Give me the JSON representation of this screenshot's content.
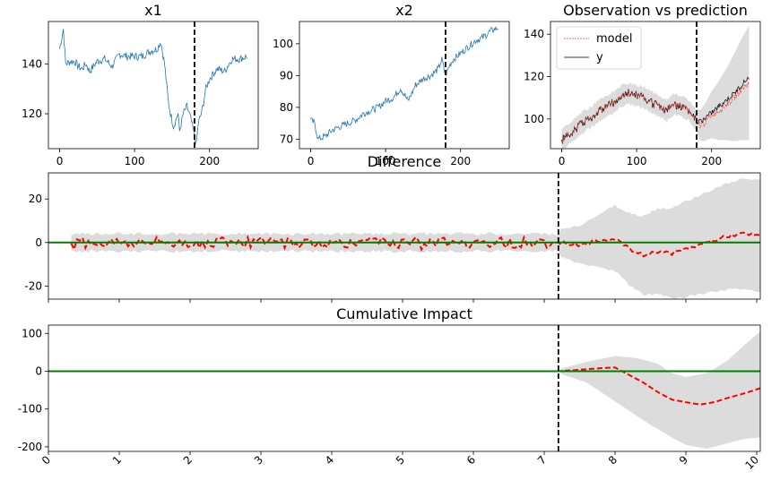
{
  "chart_data": [
    {
      "id": "x1",
      "type": "line",
      "title": "x1",
      "xlim": [
        -15,
        265
      ],
      "ylim": [
        106,
        157
      ],
      "xticks": [
        0,
        100,
        200
      ],
      "yticks": [
        120,
        140
      ],
      "intervention_x": 180,
      "series_color": "#1f77b4",
      "anchors": [
        [
          0,
          146
        ],
        [
          5,
          154
        ],
        [
          8,
          140
        ],
        [
          15,
          141
        ],
        [
          20,
          141
        ],
        [
          25,
          139
        ],
        [
          30,
          138
        ],
        [
          35,
          140
        ],
        [
          40,
          137
        ],
        [
          50,
          141
        ],
        [
          60,
          142
        ],
        [
          70,
          139
        ],
        [
          80,
          144
        ],
        [
          90,
          143
        ],
        [
          100,
          143
        ],
        [
          110,
          143
        ],
        [
          120,
          145
        ],
        [
          130,
          146
        ],
        [
          135,
          149
        ],
        [
          140,
          140
        ],
        [
          142,
          134
        ],
        [
          145,
          125
        ],
        [
          148,
          120
        ],
        [
          152,
          115
        ],
        [
          158,
          120
        ],
        [
          160,
          113
        ],
        [
          165,
          120
        ],
        [
          170,
          123
        ],
        [
          175,
          118
        ],
        [
          180,
          111
        ],
        [
          182,
          107
        ],
        [
          185,
          116
        ],
        [
          190,
          121
        ],
        [
          195,
          130
        ],
        [
          200,
          134
        ],
        [
          210,
          138
        ],
        [
          220,
          137
        ],
        [
          230,
          142
        ],
        [
          240,
          142
        ],
        [
          250,
          143
        ]
      ]
    },
    {
      "id": "x2",
      "type": "line",
      "title": "x2",
      "xlim": [
        -15,
        265
      ],
      "ylim": [
        67,
        107
      ],
      "xticks": [
        0,
        100,
        200
      ],
      "yticks": [
        70,
        80,
        90,
        100
      ],
      "intervention_x": 180,
      "series_color": "#1f77b4",
      "anchors": [
        [
          0,
          76
        ],
        [
          5,
          75
        ],
        [
          10,
          70
        ],
        [
          20,
          71
        ],
        [
          30,
          73
        ],
        [
          40,
          74
        ],
        [
          50,
          75
        ],
        [
          60,
          76
        ],
        [
          70,
          78
        ],
        [
          80,
          79
        ],
        [
          90,
          80
        ],
        [
          100,
          82
        ],
        [
          110,
          83
        ],
        [
          120,
          86
        ],
        [
          125,
          84
        ],
        [
          130,
          82
        ],
        [
          140,
          87
        ],
        [
          150,
          89
        ],
        [
          160,
          90
        ],
        [
          170,
          92
        ],
        [
          175,
          95
        ],
        [
          180,
          90
        ],
        [
          185,
          93
        ],
        [
          190,
          95
        ],
        [
          200,
          97
        ],
        [
          210,
          99
        ],
        [
          220,
          101
        ],
        [
          230,
          102
        ],
        [
          240,
          104
        ],
        [
          250,
          105
        ]
      ]
    },
    {
      "id": "observation",
      "type": "line",
      "title": "Observation vs prediction",
      "xlim": [
        -15,
        265
      ],
      "ylim": [
        86,
        146
      ],
      "xticks": [
        0,
        100,
        200
      ],
      "yticks": [
        100,
        120,
        140
      ],
      "intervention_x": 180,
      "legend": [
        "model",
        "y"
      ],
      "legend_loc": "upper left",
      "model_color": "#e8413c",
      "y_color": "#000000",
      "band_color": "#dcdcdc",
      "anchors": [
        [
          0,
          90
        ],
        [
          10,
          93
        ],
        [
          20,
          96
        ],
        [
          30,
          99
        ],
        [
          40,
          101
        ],
        [
          50,
          104
        ],
        [
          60,
          106
        ],
        [
          70,
          108
        ],
        [
          80,
          111
        ],
        [
          90,
          112
        ],
        [
          100,
          111
        ],
        [
          110,
          110
        ],
        [
          120,
          108
        ],
        [
          130,
          106
        ],
        [
          140,
          104
        ],
        [
          150,
          107
        ],
        [
          160,
          106
        ],
        [
          170,
          104
        ],
        [
          180,
          99
        ],
        [
          185,
          97
        ],
        [
          190,
          98
        ],
        [
          200,
          102
        ],
        [
          210,
          104
        ],
        [
          220,
          107
        ],
        [
          230,
          110
        ],
        [
          240,
          114
        ],
        [
          250,
          117
        ]
      ],
      "y_after": [
        [
          180,
          98
        ],
        [
          190,
          100
        ],
        [
          200,
          103
        ],
        [
          210,
          106
        ],
        [
          220,
          109
        ],
        [
          230,
          112
        ],
        [
          240,
          116
        ],
        [
          250,
          120
        ]
      ],
      "band_before": 5,
      "band_after": [
        [
          180,
          6
        ],
        [
          200,
          11
        ],
        [
          220,
          17
        ],
        [
          240,
          24
        ],
        [
          250,
          27
        ]
      ]
    },
    {
      "id": "difference",
      "type": "line",
      "title": "Difference",
      "xlim": [
        0,
        10.05
      ],
      "ylim": [
        -26,
        32
      ],
      "xticks": [
        0,
        1,
        2,
        3,
        4,
        5,
        6,
        7,
        8,
        9,
        10
      ],
      "yticks": [
        -20,
        0,
        20
      ],
      "intervention_x": 7.2,
      "series_color": "#ff0000",
      "zero_color": "#008000",
      "band_color": "#dcdcdc",
      "anchors": [
        [
          7.2,
          0
        ],
        [
          7.5,
          -1
        ],
        [
          7.8,
          1
        ],
        [
          8.0,
          2
        ],
        [
          8.2,
          -3
        ],
        [
          8.4,
          -6
        ],
        [
          8.6,
          -4
        ],
        [
          8.8,
          -5
        ],
        [
          9.0,
          -3
        ],
        [
          9.2,
          -1
        ],
        [
          9.4,
          1
        ],
        [
          9.6,
          3
        ],
        [
          9.8,
          4
        ],
        [
          10.05,
          3
        ]
      ],
      "band_before": 4,
      "band_after": [
        [
          7.2,
          6
        ],
        [
          7.6,
          10
        ],
        [
          8.0,
          15
        ],
        [
          8.5,
          19
        ],
        [
          9.0,
          22
        ],
        [
          9.5,
          24
        ],
        [
          10.05,
          26
        ]
      ]
    },
    {
      "id": "cumulative",
      "type": "line",
      "title": "Cumulative Impact",
      "xlim": [
        0,
        10.05
      ],
      "ylim": [
        -212,
        122
      ],
      "xticks": [
        0,
        1,
        2,
        3,
        4,
        5,
        6,
        7,
        8,
        9,
        10
      ],
      "xtick_labels": [
        "0",
        "1",
        "2",
        "3",
        "4",
        "5",
        "6",
        "7",
        "8",
        "9",
        "10"
      ],
      "yticks": [
        -200,
        -100,
        0,
        100
      ],
      "intervention_x": 7.2,
      "series_color": "#ff0000",
      "zero_color": "#008000",
      "band_color": "#dcdcdc",
      "anchors": [
        [
          0,
          0
        ],
        [
          7.2,
          0
        ],
        [
          7.5,
          4
        ],
        [
          7.8,
          8
        ],
        [
          8.0,
          10
        ],
        [
          8.2,
          -10
        ],
        [
          8.4,
          -30
        ],
        [
          8.6,
          -55
        ],
        [
          8.8,
          -75
        ],
        [
          9.0,
          -82
        ],
        [
          9.2,
          -88
        ],
        [
          9.4,
          -82
        ],
        [
          9.6,
          -70
        ],
        [
          9.8,
          -60
        ],
        [
          10.05,
          -45
        ]
      ],
      "band_upper": [
        [
          7.2,
          5
        ],
        [
          7.6,
          25
        ],
        [
          8.0,
          40
        ],
        [
          8.3,
          35
        ],
        [
          8.6,
          20
        ],
        [
          8.8,
          -5
        ],
        [
          9.0,
          -15
        ],
        [
          9.3,
          -5
        ],
        [
          9.6,
          30
        ],
        [
          9.8,
          65
        ],
        [
          10.05,
          105
        ]
      ],
      "band_lower": [
        [
          7.2,
          -5
        ],
        [
          7.6,
          -30
        ],
        [
          8.0,
          -80
        ],
        [
          8.4,
          -130
        ],
        [
          8.8,
          -175
        ],
        [
          9.0,
          -195
        ],
        [
          9.3,
          -205
        ],
        [
          9.6,
          -190
        ],
        [
          9.8,
          -180
        ],
        [
          10.05,
          -175
        ]
      ]
    }
  ]
}
